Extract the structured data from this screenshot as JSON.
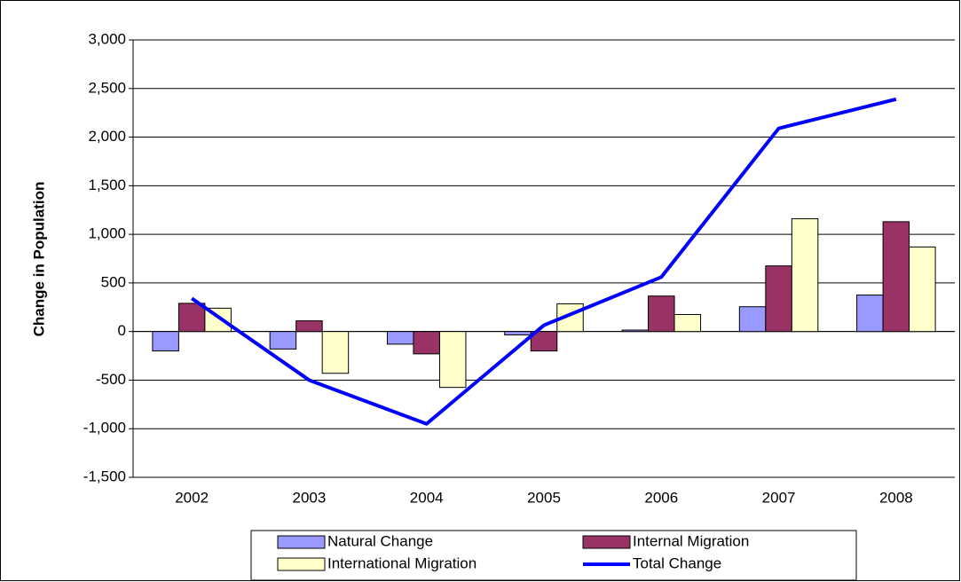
{
  "chart_data": {
    "type": "bar",
    "y_label": "Change in Population",
    "categories": [
      "2002",
      "2003",
      "2004",
      "2005",
      "2006",
      "2007",
      "2008"
    ],
    "series": [
      {
        "name": "Natural Change",
        "color": "#9999ff",
        "values": [
          -200,
          -180,
          -130,
          -35,
          15,
          255,
          375
        ]
      },
      {
        "name": "Internal Migration",
        "color": "#993366",
        "values": [
          290,
          110,
          -230,
          -200,
          365,
          675,
          1130
        ]
      },
      {
        "name": "International Migration",
        "color": "#ffffcc",
        "values": [
          240,
          -430,
          -575,
          285,
          175,
          1160,
          870
        ]
      },
      {
        "name": "Total Change",
        "color": "#0000ff",
        "type": "line",
        "values": [
          340,
          -500,
          -950,
          65,
          560,
          2090,
          2390
        ]
      }
    ],
    "ylim": [
      -1500,
      3000
    ],
    "yticks": [
      {
        "value": -1500,
        "label": "-1,500"
      },
      {
        "value": -1000,
        "label": "-1,000"
      },
      -500,
      0,
      500,
      {
        "value": 1000,
        "label": "1,000"
      },
      {
        "value": 1500,
        "label": "1,500"
      },
      {
        "value": 2000,
        "label": "2,000"
      },
      {
        "value": 2500,
        "label": "2,500"
      },
      {
        "value": 3000,
        "label": "3,000"
      }
    ],
    "grid": true,
    "legend": "bottom"
  }
}
